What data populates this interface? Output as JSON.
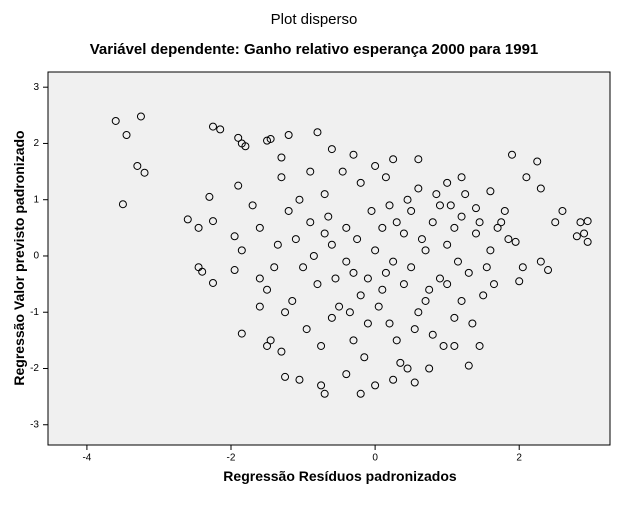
{
  "chart_data": {
    "type": "scatter",
    "title": "Plot disperso",
    "subtitle": "Variável dependente: Ganho relativo esperança 2000 para 1991",
    "xlabel": "Regressão Resíduos padronizados",
    "ylabel": "Regressão Valor previsto padronizado",
    "xlim": [
      -4.54,
      3.26
    ],
    "ylim": [
      -3.36,
      3.27
    ],
    "xticks": [
      -4,
      -2,
      0,
      2
    ],
    "yticks": [
      -3,
      -2,
      -1,
      0,
      1,
      2,
      3
    ],
    "color": "#000000",
    "x": [
      -3.6,
      -3.25,
      -3.45,
      -3.3,
      -3.2,
      -3.5,
      -2.25,
      -2.15,
      -2.6,
      -2.45,
      -2.45,
      -2.4,
      -2.25,
      -2.3,
      -2.25,
      -1.9,
      -1.85,
      -1.8,
      -1.9,
      -1.95,
      -1.85,
      -1.95,
      -1.85,
      -1.5,
      -1.45,
      -1.3,
      -1.2,
      -0.8,
      -0.6,
      -0.3,
      0.25,
      0.6,
      -1.6,
      -1.6,
      -1.45,
      -1.5,
      -1.3,
      -1.25,
      -1.05,
      -0.75,
      -0.7,
      -0.4,
      -0.2,
      0.0,
      0.25,
      0.55,
      0.75,
      1.1,
      1.3,
      1.45,
      1.9,
      2.1,
      2.25,
      2.3,
      2.5,
      2.6,
      2.85,
      2.9,
      2.95,
      2.95,
      2.8,
      2.4,
      2.3,
      2.0,
      2.05,
      1.95,
      1.75,
      1.6,
      1.4,
      1.2,
      1.0,
      -1.2,
      -1.1,
      -1.0,
      -0.9,
      -0.8,
      -0.7,
      -0.6,
      -0.5,
      -0.4,
      -0.3,
      -0.2,
      -0.1,
      0.0,
      0.1,
      0.2,
      0.3,
      0.4,
      0.5,
      0.6,
      0.7,
      0.8,
      0.9,
      1.0,
      1.1,
      1.2,
      1.3,
      1.4,
      1.5,
      1.6,
      1.7,
      -1.4,
      -1.3,
      -1.15,
      -1.05,
      -0.95,
      -0.85,
      -0.75,
      -0.65,
      -0.55,
      -0.45,
      -0.35,
      -0.25,
      -0.15,
      -0.05,
      0.05,
      0.15,
      0.25,
      0.35,
      0.45,
      0.55,
      0.65,
      0.75,
      0.85,
      0.95,
      1.05,
      1.15,
      1.25,
      1.35,
      1.45,
      1.55,
      -1.6,
      -1.7,
      -1.5,
      -1.35,
      -0.6,
      -0.2,
      0.1,
      0.3,
      0.5,
      0.7,
      0.9,
      1.1,
      -0.4,
      -0.1,
      0.2,
      0.4,
      0.6,
      0.8,
      1.0,
      1.2,
      1.8,
      1.65,
      1.85,
      -1.25,
      -0.9,
      0.0,
      0.45,
      -0.3,
      0.15,
      -0.7
    ],
    "values": [
      2.4,
      2.48,
      2.15,
      1.6,
      1.48,
      0.92,
      2.3,
      2.25,
      0.65,
      0.5,
      -0.2,
      -0.28,
      -0.48,
      1.05,
      0.62,
      2.1,
      2.0,
      1.95,
      1.25,
      0.35,
      0.1,
      -0.25,
      -1.38,
      2.05,
      2.08,
      1.75,
      2.15,
      2.2,
      1.9,
      1.8,
      1.72,
      1.72,
      -0.4,
      -0.9,
      -1.5,
      -1.6,
      -1.7,
      -2.15,
      -2.2,
      -2.3,
      -2.45,
      -2.1,
      -2.45,
      -2.3,
      -2.2,
      -2.25,
      -2.0,
      -1.6,
      -1.95,
      -1.6,
      1.8,
      1.4,
      1.68,
      1.2,
      0.6,
      0.8,
      0.6,
      0.4,
      0.25,
      0.62,
      0.35,
      -0.25,
      -0.1,
      -0.45,
      -0.2,
      0.25,
      0.6,
      1.15,
      0.85,
      1.4,
      1.3,
      0.8,
      0.3,
      -0.2,
      0.6,
      -0.5,
      1.1,
      0.2,
      -0.9,
      0.5,
      -0.3,
      1.3,
      -1.2,
      0.1,
      -0.6,
      0.9,
      -1.5,
      0.4,
      -0.2,
      1.2,
      -0.8,
      0.6,
      -0.4,
      0.2,
      -1.1,
      0.7,
      -0.3,
      0.4,
      -0.7,
      0.1,
      0.5,
      -0.2,
      1.4,
      -0.8,
      1.0,
      -1.3,
      0.0,
      -1.6,
      0.7,
      -0.4,
      1.5,
      -1.0,
      0.3,
      -1.8,
      0.8,
      -0.9,
      1.4,
      -0.1,
      -1.9,
      1.0,
      -1.3,
      0.3,
      -0.6,
      1.1,
      -1.6,
      0.9,
      -0.1,
      1.1,
      -1.2,
      0.6,
      -0.2,
      0.5,
      0.9,
      -0.6,
      0.2,
      -1.1,
      -0.7,
      0.5,
      0.6,
      0.8,
      0.1,
      0.9,
      0.5,
      -0.1,
      -0.4,
      -1.2,
      -0.5,
      -1.0,
      -1.4,
      -0.5,
      -0.8,
      0.8,
      -0.5,
      0.3,
      -1.0,
      1.5,
      1.6,
      -2.0,
      -1.5,
      -0.3,
      0.4
    ]
  }
}
